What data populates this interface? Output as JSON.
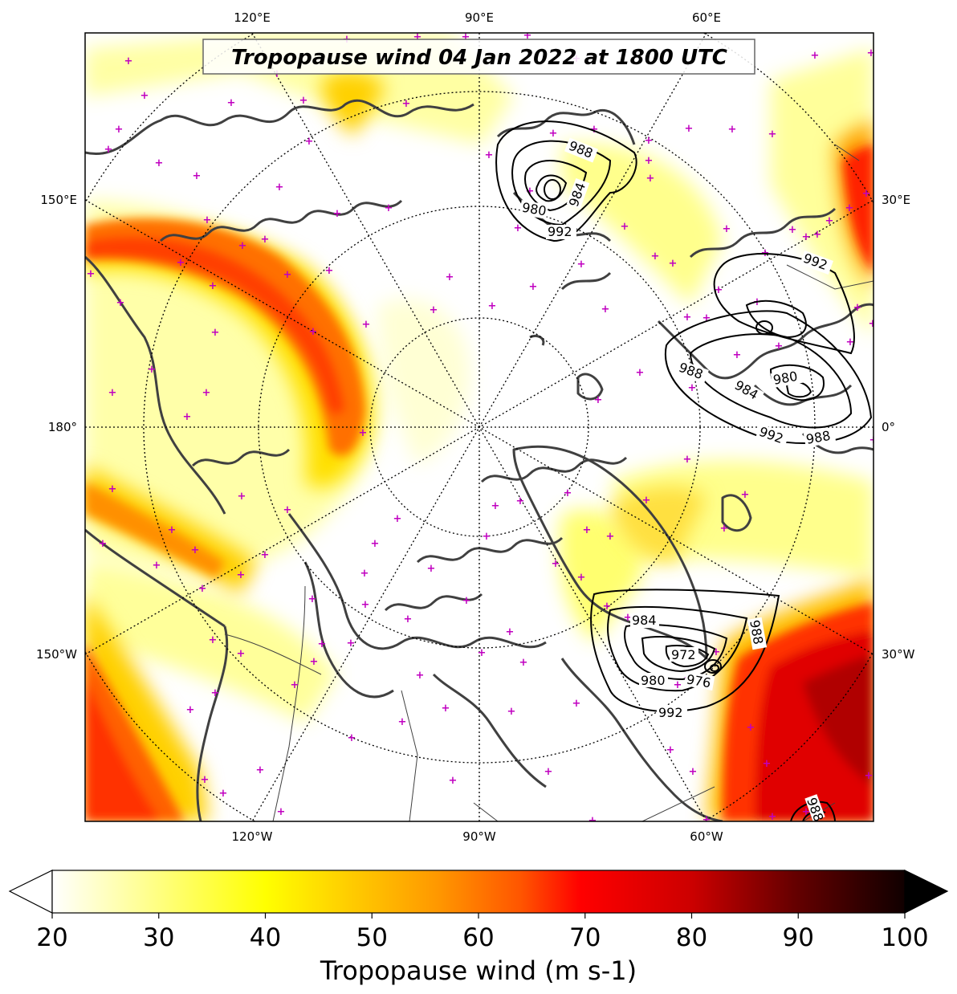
{
  "title": "Tropopause wind 04 Jan 2022 at 1800 UTC",
  "longitude_labels": {
    "top": [
      "120°E",
      "90°E",
      "60°E"
    ],
    "left": [
      "150°E",
      "180°",
      "150°W"
    ],
    "right": [
      "30°E",
      "0°",
      "30°W"
    ],
    "bottom": [
      "120°W",
      "90°W",
      "60°W"
    ]
  },
  "colorbar": {
    "label": "Tropopause wind (m s-1)",
    "ticks": [
      "20",
      "30",
      "40",
      "50",
      "60",
      "70",
      "80",
      "90",
      "100"
    ],
    "range": [
      20,
      100
    ],
    "extend": "both",
    "colormap": "hot_r",
    "colors": [
      "#ffffff",
      "#ffff80",
      "#ffff00",
      "#ffc000",
      "#ff8000",
      "#ff4000",
      "#ff0000",
      "#c00000",
      "#800000",
      "#400000",
      "#000000"
    ]
  },
  "pressure_contour_labels": [
    "988",
    "984",
    "980",
    "992",
    "988",
    "984",
    "980",
    "992",
    "988",
    "992",
    "984",
    "972",
    "980",
    "976",
    "992",
    "988",
    "988"
  ],
  "colors": {
    "coastline": "#404040",
    "grid": "#000000",
    "station_marker": "#c000c0",
    "contour": "#000000"
  }
}
